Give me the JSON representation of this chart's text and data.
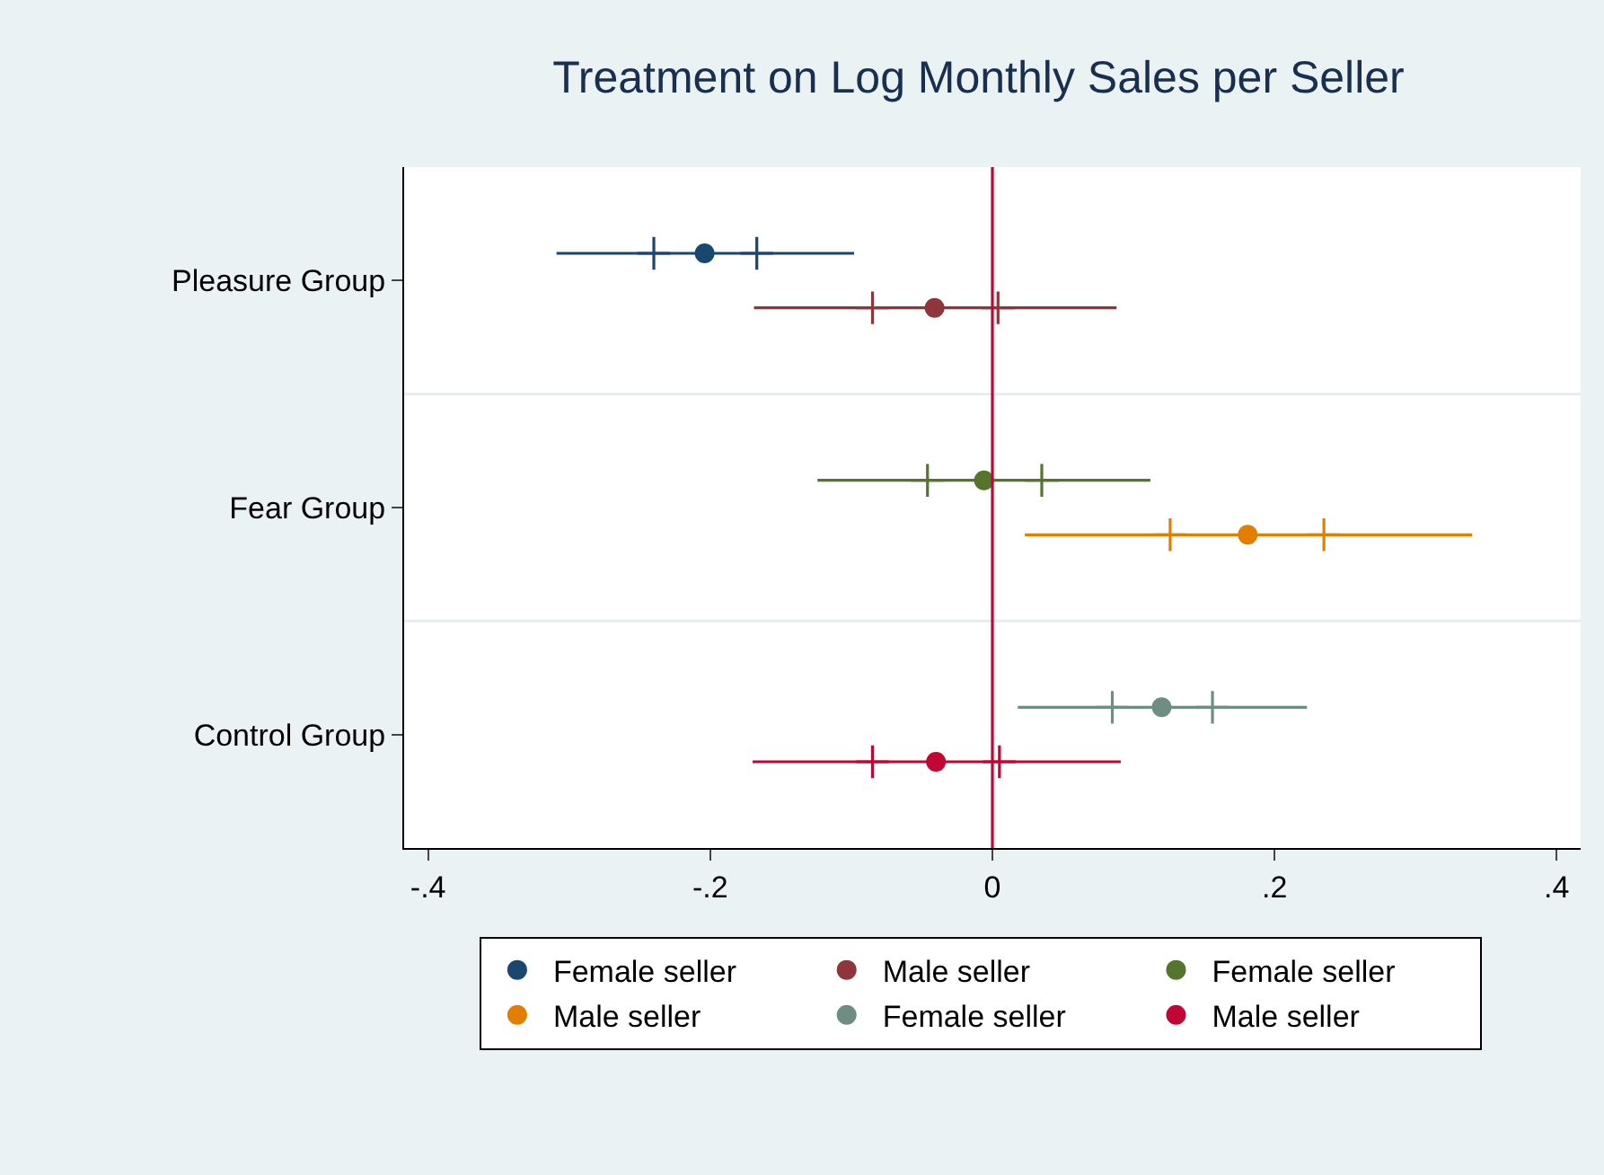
{
  "chart_data": {
    "type": "scatter",
    "orientation": "horizontal",
    "title": "Treatment on Log Monthly Sales per Seller",
    "categories": [
      "Pleasure Group",
      "Fear Group",
      "Control Group"
    ],
    "xlim": [
      -0.417,
      0.417
    ],
    "xticks": [
      {
        "value": -0.4,
        "label": "-.4"
      },
      {
        "value": -0.2,
        "label": "-.2"
      },
      0,
      {
        "value": 0.2,
        "label": ".2"
      },
      {
        "value": 0.4,
        "label": ".4"
      }
    ],
    "grid": "y",
    "legend": "bottom",
    "marker": "circle",
    "ref_lines": [
      {
        "axis": "x",
        "value": 0,
        "color": "#c10534"
      }
    ],
    "series": [
      {
        "name": "Female seller",
        "color": "#1a476f",
        "values": [
          -0.204,
          null,
          null
        ],
        "errors": [
          [
            -0.309,
            -0.098
          ],
          null,
          null
        ]
      },
      {
        "marker": "cross",
        "color": "#1a476f",
        "values": [
          -0.24,
          null,
          null
        ]
      },
      {
        "marker": "cross",
        "color": "#1a476f",
        "values": [
          -0.167,
          null,
          null
        ]
      },
      {
        "name": "Male seller",
        "color": "#90353b",
        "values": [
          -0.041,
          null,
          null
        ],
        "errors": [
          [
            -0.169,
            0.088
          ],
          null,
          null
        ]
      },
      {
        "marker": "cross",
        "color": "#90353b",
        "values": [
          -0.085,
          null,
          null
        ]
      },
      {
        "marker": "cross",
        "color": "#90353b",
        "values": [
          0.004,
          null,
          null
        ]
      },
      {
        "name": "Female seller",
        "color": "#55752f",
        "values": [
          null,
          -0.006,
          null
        ],
        "errors": [
          null,
          [
            -0.124,
            0.112
          ],
          null
        ]
      },
      {
        "marker": "cross",
        "color": "#55752f",
        "values": [
          null,
          -0.046,
          null
        ]
      },
      {
        "marker": "cross",
        "color": "#55752f",
        "values": [
          null,
          0.035,
          null
        ]
      },
      {
        "name": "Male seller",
        "color": "#e37e00",
        "values": [
          null,
          0.181,
          null
        ],
        "errors": [
          null,
          [
            0.023,
            0.34
          ],
          null
        ]
      },
      {
        "marker": "cross",
        "color": "#e37e00",
        "values": [
          null,
          0.126,
          null
        ]
      },
      {
        "marker": "cross",
        "color": "#e37e00",
        "values": [
          null,
          0.235,
          null
        ]
      },
      {
        "name": "Female seller",
        "color": "#6e8e84",
        "values": [
          null,
          null,
          0.12
        ],
        "errors": [
          null,
          null,
          [
            0.018,
            0.223
          ]
        ]
      },
      {
        "marker": "cross",
        "color": "#6e8e84",
        "values": [
          null,
          null,
          0.085
        ]
      },
      {
        "marker": "cross",
        "color": "#6e8e84",
        "values": [
          null,
          null,
          0.156
        ]
      },
      {
        "name": "Male seller",
        "color": "#c10534",
        "values": [
          null,
          null,
          -0.04
        ],
        "errors": [
          null,
          null,
          [
            -0.17,
            0.091
          ]
        ]
      },
      {
        "marker": "cross",
        "color": "#c10534",
        "values": [
          null,
          null,
          -0.085
        ]
      },
      {
        "marker": "cross",
        "color": "#c10534",
        "values": [
          null,
          null,
          0.005
        ]
      }
    ]
  }
}
